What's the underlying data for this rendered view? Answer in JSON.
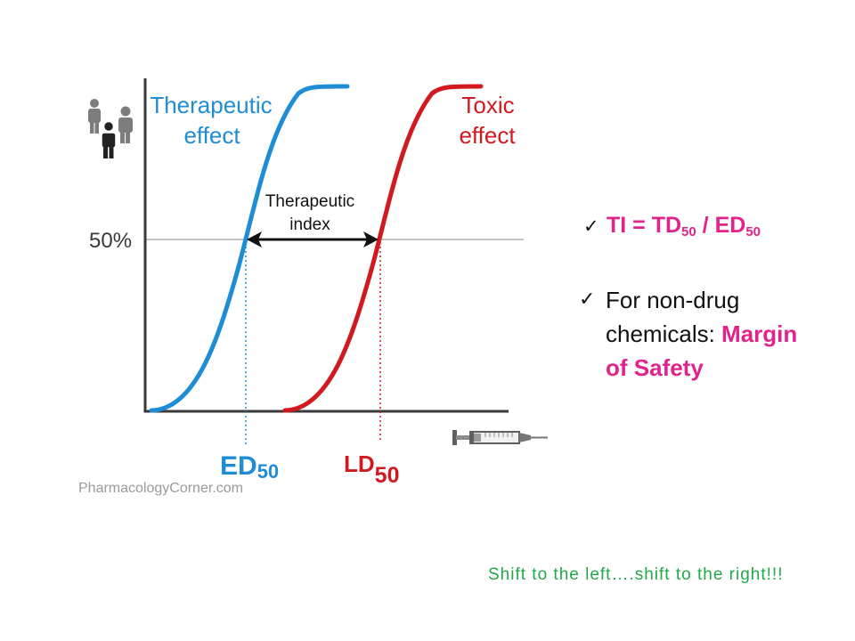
{
  "figure": {
    "fifty_percent_label": "50%",
    "therapeutic_label": [
      "Therapeutic",
      "effect"
    ],
    "toxic_label": [
      "Toxic",
      "effect"
    ],
    "index_label": [
      "Therapeutic",
      "index"
    ],
    "ed50": {
      "main": "ED",
      "sub": "50"
    },
    "ld50": {
      "main": "LD",
      "sub": "50"
    },
    "watermark": "PharmacologyCorner.com",
    "icons": {
      "population": "people-icon",
      "dose": "syringe-icon",
      "index": "double-arrow-icon"
    },
    "colors": {
      "therapeutic": "#1f8dd6",
      "toxic": "#d11a1f",
      "axis": "#3a3a3a",
      "gridline": "#c4c4c4",
      "watermark": "#9a9a9a"
    }
  },
  "slide": {
    "bullets": [
      {
        "check": "✓",
        "formula": {
          "lhs": "TI = TD",
          "sub1": "50",
          "mid": " / ED",
          "sub2": "50"
        }
      },
      {
        "check": "✓",
        "text": "For non-drug chemicals: ",
        "highlight": "Margin of Safety"
      }
    ],
    "footer_note": "Shift to the left….shift to the right!!!",
    "icons": {
      "bullet": "check-icon"
    },
    "colors": {
      "highlight": "#e2238c",
      "note": "#22a84a"
    }
  }
}
